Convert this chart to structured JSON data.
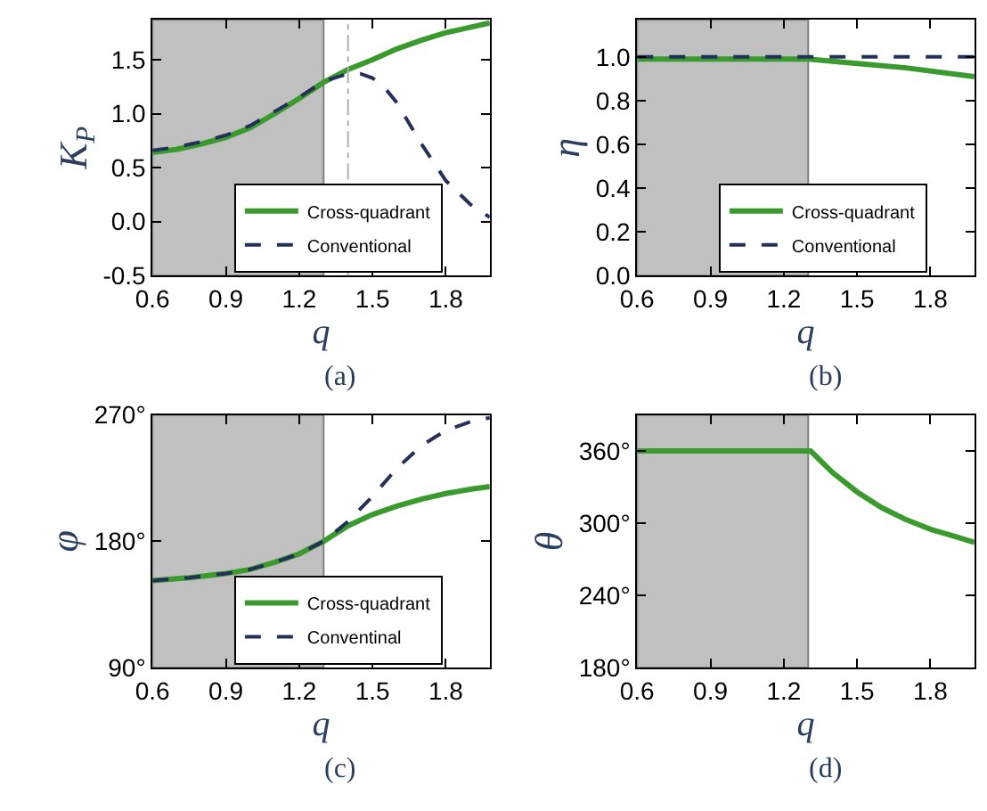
{
  "chart_data": [
    {
      "type": "line",
      "xlabel": "q",
      "ylabel": "K$_{P}$",
      "annotations": [
        "(a)"
      ],
      "xlim": [
        0.6,
        1.98
      ],
      "xticks": [
        0.6,
        0.9,
        1.2,
        1.5,
        1.8
      ],
      "ylim": [
        -0.5,
        1.87
      ],
      "yticks": [
        -0.5,
        {
          "value": 0,
          "label": "0.0"
        },
        0.5,
        {
          "value": 1,
          "label": "1.0"
        },
        1.5
      ],
      "grid": false,
      "legend": "bottom right",
      "marker": "none",
      "bands": [
        {
          "axis": "x",
          "from": 0.6,
          "to": 1.3,
          "color": "#c0c0c0"
        }
      ],
      "ref_lines": [
        {
          "axis": "x",
          "value": 1.4,
          "color": "#b0b0b0",
          "line_style": "dashdot"
        }
      ],
      "series": [
        {
          "name": "Cross-quadrant",
          "color": "#3a9a2e",
          "line_style": "solid",
          "x": [
            0.6,
            0.7,
            0.8,
            0.9,
            1.0,
            1.1,
            1.2,
            1.3,
            1.4,
            1.5,
            1.6,
            1.7,
            1.8,
            1.9,
            1.98
          ],
          "values": [
            0.64,
            0.67,
            0.72,
            0.78,
            0.87,
            1.0,
            1.14,
            1.29,
            1.41,
            1.5,
            1.6,
            1.68,
            1.75,
            1.8,
            1.84
          ]
        },
        {
          "name": "Conventional",
          "color": "#23305a",
          "line_style": "dashed",
          "x": [
            0.6,
            0.7,
            0.8,
            0.9,
            1.0,
            1.1,
            1.2,
            1.3,
            1.4,
            1.45,
            1.5,
            1.55,
            1.6,
            1.7,
            1.8,
            1.9,
            1.98
          ],
          "values": [
            0.66,
            0.69,
            0.74,
            0.8,
            0.89,
            1.02,
            1.15,
            1.3,
            1.37,
            1.37,
            1.33,
            1.24,
            1.1,
            0.72,
            0.38,
            0.16,
            0.04
          ]
        }
      ]
    },
    {
      "type": "line",
      "xlabel": "q",
      "ylabel": "η",
      "annotations": [
        "(b)"
      ],
      "xlim": [
        0.6,
        1.98
      ],
      "xticks": [
        0.6,
        0.9,
        1.2,
        1.5,
        1.8
      ],
      "ylim": [
        0,
        1.17
      ],
      "yticks": [
        {
          "value": 0,
          "label": "0.0"
        },
        0.2,
        0.4,
        0.6,
        0.8,
        {
          "value": 1,
          "label": "1.0"
        }
      ],
      "grid": false,
      "legend": "bottom right",
      "marker": "none",
      "bands": [
        {
          "axis": "x",
          "from": 0.6,
          "to": 1.3,
          "color": "#c0c0c0"
        }
      ],
      "series": [
        {
          "name": "Cross-quadrant",
          "color": "#3a9a2e",
          "line_style": "solid",
          "x": [
            0.6,
            1.3,
            1.5,
            1.7,
            1.98
          ],
          "values": [
            0.99,
            0.99,
            0.97,
            0.95,
            0.91
          ]
        },
        {
          "name": "Conventional",
          "color": "#23305a",
          "line_style": "dashed",
          "x": [
            0.6,
            1.98
          ],
          "values": [
            1.0,
            1.0
          ]
        }
      ]
    },
    {
      "type": "line",
      "xlabel": "q",
      "ylabel": "φ",
      "annotations": [
        "(c)"
      ],
      "xlim": [
        0.6,
        1.98
      ],
      "xticks": [
        0.6,
        0.9,
        1.2,
        1.5,
        1.8
      ],
      "ylim": [
        90,
        270
      ],
      "yticks": [
        {
          "value": 90,
          "label": "90°"
        },
        {
          "value": 180,
          "label": "180°"
        },
        {
          "value": 270,
          "label": "270°"
        }
      ],
      "grid": false,
      "legend": "bottom right",
      "marker": "none",
      "bands": [
        {
          "axis": "x",
          "from": 0.6,
          "to": 1.3,
          "color": "#c0c0c0"
        }
      ],
      "series": [
        {
          "name": "Cross-quadrant",
          "color": "#3a9a2e",
          "line_style": "solid",
          "x": [
            0.6,
            0.75,
            0.9,
            1.0,
            1.1,
            1.2,
            1.3,
            1.4,
            1.5,
            1.6,
            1.7,
            1.8,
            1.9,
            1.98
          ],
          "values": [
            152,
            154,
            157,
            160,
            165,
            171,
            180,
            191,
            199,
            205,
            210,
            214,
            217,
            219
          ]
        },
        {
          "name": "Conventinal",
          "color": "#23305a",
          "line_style": "dashed",
          "x": [
            0.6,
            0.75,
            0.9,
            1.0,
            1.1,
            1.2,
            1.3,
            1.4,
            1.5,
            1.6,
            1.7,
            1.8,
            1.9,
            1.98
          ],
          "values": [
            152,
            154,
            157,
            160,
            165,
            171,
            180,
            194,
            212,
            232,
            248,
            259,
            265,
            268
          ]
        }
      ]
    },
    {
      "type": "line",
      "xlabel": "q",
      "ylabel": "θ",
      "annotations": [
        "(d)"
      ],
      "xlim": [
        0.6,
        1.98
      ],
      "xticks": [
        0.6,
        0.9,
        1.2,
        1.5,
        1.8
      ],
      "ylim": [
        180,
        390
      ],
      "yticks": [
        {
          "value": 180,
          "label": "180°"
        },
        {
          "value": 240,
          "label": "240°"
        },
        {
          "value": 300,
          "label": "300°"
        },
        {
          "value": 360,
          "label": "360°"
        }
      ],
      "grid": false,
      "marker": "none",
      "bands": [
        {
          "axis": "x",
          "from": 0.6,
          "to": 1.3,
          "color": "#c0c0c0"
        }
      ],
      "series": [
        {
          "color": "#3a9a2e",
          "line_style": "solid",
          "x": [
            0.6,
            1.31,
            1.4,
            1.5,
            1.6,
            1.7,
            1.8,
            1.9,
            1.98
          ],
          "values": [
            360,
            360,
            342,
            326,
            313,
            303,
            295,
            289,
            284
          ]
        }
      ]
    }
  ]
}
